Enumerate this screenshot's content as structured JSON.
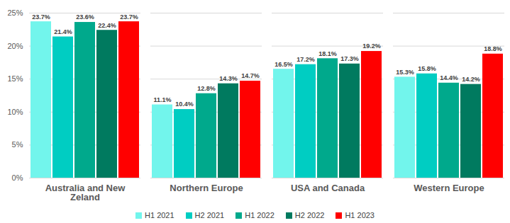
{
  "chart_data": {
    "type": "bar",
    "categories": [
      "Australia and New Zeland",
      "Northern Europe",
      "USA and Canada",
      "Western Europe"
    ],
    "series": [
      {
        "name": "H1 2021",
        "color": "#72f5ec",
        "values": [
          23.7,
          11.1,
          16.5,
          15.3
        ],
        "value_labels": [
          "23.7%",
          "11.1%",
          "16.5%",
          "15.3%"
        ]
      },
      {
        "name": "H2 2021",
        "color": "#00cdc2",
        "values": [
          21.4,
          10.4,
          17.2,
          15.8
        ],
        "value_labels": [
          "21.4%",
          "10.4%",
          "17.2%",
          "15.8%"
        ]
      },
      {
        "name": "H1 2022",
        "color": "#00a98c",
        "values": [
          23.6,
          12.8,
          18.1,
          14.4
        ],
        "value_labels": [
          "23.6%",
          "12.8%",
          "18.1%",
          "14.4%"
        ]
      },
      {
        "name": "H2 2022",
        "color": "#007a5f",
        "values": [
          22.4,
          14.3,
          17.3,
          14.2
        ],
        "value_labels": [
          "22.4%",
          "14.3%",
          "17.3%",
          "14.2%"
        ]
      },
      {
        "name": "H1 2023",
        "color": "#ff0000",
        "values": [
          23.7,
          14.7,
          19.2,
          18.8
        ],
        "value_labels": [
          "23.7%",
          "14.7%",
          "19.2%",
          "18.8%"
        ]
      }
    ],
    "ylim": [
      0,
      25
    ],
    "yticks": [
      {
        "value": 0,
        "label": "0%"
      },
      {
        "value": 5,
        "label": "5%"
      },
      {
        "value": 10,
        "label": "10%"
      },
      {
        "value": 15,
        "label": "15%"
      },
      {
        "value": 20,
        "label": "20%"
      },
      {
        "value": 25,
        "label": "25%"
      }
    ],
    "grid": true,
    "data_labels": true,
    "legend": "bottom"
  }
}
